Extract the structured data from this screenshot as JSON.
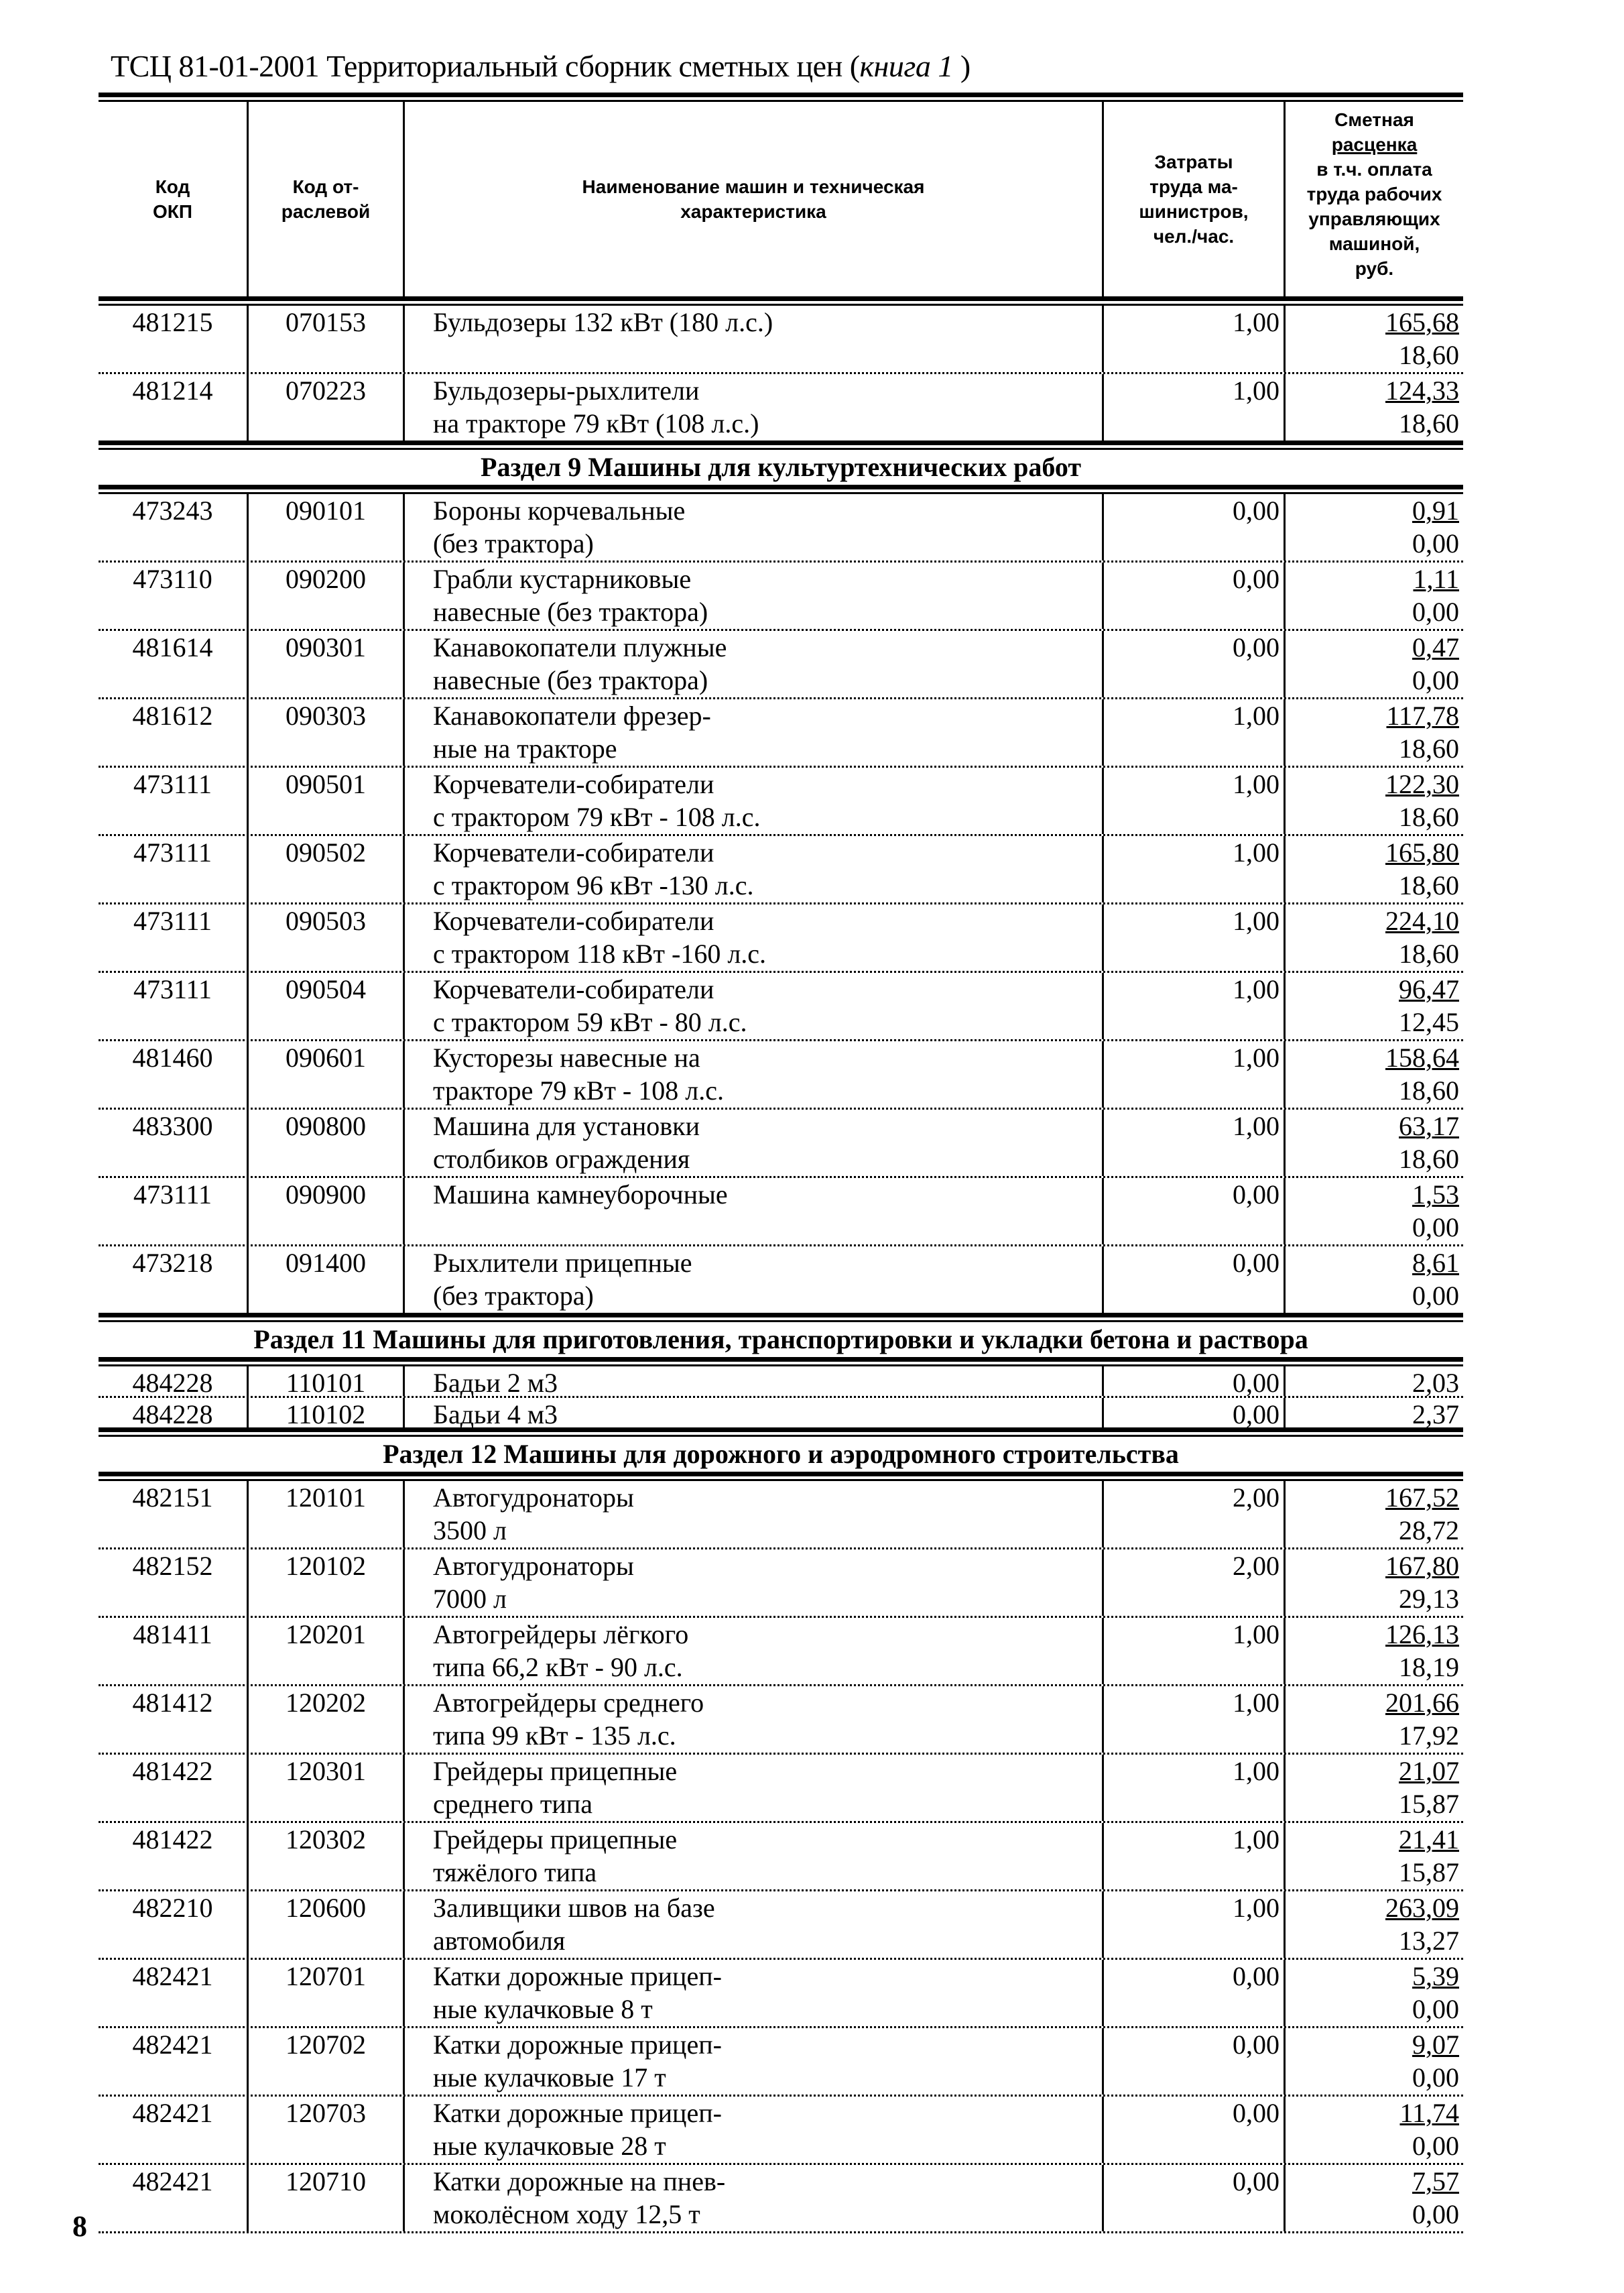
{
  "header": {
    "title_main": "ТСЦ 81-01-2001 Территориальный сборник сметных цен (",
    "title_italic": "книга 1",
    "title_end": " )"
  },
  "columns": [
    {
      "lines": [
        "Код",
        "ОКП"
      ]
    },
    {
      "lines": [
        "Код от-",
        "раслевой"
      ]
    },
    {
      "lines": [
        "Наименование машин и техническая",
        "характеристика"
      ]
    },
    {
      "lines": [
        "Затраты",
        "труда ма-",
        "шинистров,",
        "чел./час."
      ]
    },
    {
      "lines": [
        "Сметная",
        "расценка",
        "в т.ч. оплата",
        "труда рабочих",
        "управляющих",
        "машиной,",
        "руб."
      ],
      "underlined_line": 1
    }
  ],
  "blocks": [
    {
      "title": "",
      "rows": [
        {
          "okp": "481215",
          "code": "070153",
          "name": [
            "Бульдозеры 132 кВт (180 л.с.)",
            ""
          ],
          "labor": "1,00",
          "price": "165,68",
          "wage": "18,60"
        },
        {
          "okp": "481214",
          "code": "070223",
          "name": [
            "Бульдозеры-рыхлители",
            "на тракторе 79 кВт (108 л.с.)"
          ],
          "labor": "1,00",
          "price": "124,33",
          "wage": "18,60"
        }
      ]
    },
    {
      "title": "Раздел 9 Машины для культуртехнических работ",
      "rows": [
        {
          "okp": "473243",
          "code": "090101",
          "name": [
            "Бороны корчевальные",
            "(без трактора)"
          ],
          "labor": "0,00",
          "price": "0,91",
          "wage": "0,00"
        },
        {
          "okp": "473110",
          "code": "090200",
          "name": [
            "Грабли кустарниковые",
            "навесные (без трактора)"
          ],
          "labor": "0,00",
          "price": "1,11",
          "wage": "0,00"
        },
        {
          "okp": "481614",
          "code": "090301",
          "name": [
            "Канавокопатели плужные",
            "навесные (без трактора)"
          ],
          "labor": "0,00",
          "price": "0,47",
          "wage": "0,00"
        },
        {
          "okp": "481612",
          "code": "090303",
          "name": [
            "Канавокопатели фрезер-",
            "ные на тракторе"
          ],
          "labor": "1,00",
          "price": "117,78",
          "wage": "18,60"
        },
        {
          "okp": "473111",
          "code": "090501",
          "name": [
            "Корчеватели-собиратели",
            "с трактором 79 кВт - 108 л.с."
          ],
          "labor": "1,00",
          "price": "122,30",
          "wage": "18,60"
        },
        {
          "okp": "473111",
          "code": "090502",
          "name": [
            "Корчеватели-собиратели",
            "с трактором 96 кВт -130 л.с."
          ],
          "labor": "1,00",
          "price": "165,80",
          "wage": "18,60"
        },
        {
          "okp": "473111",
          "code": "090503",
          "name": [
            "Корчеватели-собиратели",
            "с трактором 118 кВт -160 л.с."
          ],
          "labor": "1,00",
          "price": "224,10",
          "wage": "18,60"
        },
        {
          "okp": "473111",
          "code": "090504",
          "name": [
            "Корчеватели-собиратели",
            "с трактором 59 кВт - 80 л.с."
          ],
          "labor": "1,00",
          "price": "96,47",
          "wage": "12,45"
        },
        {
          "okp": "481460",
          "code": "090601",
          "name": [
            "Кусторезы навесные на",
            "тракторе 79 кВт - 108 л.с."
          ],
          "labor": "1,00",
          "price": "158,64",
          "wage": "18,60"
        },
        {
          "okp": "483300",
          "code": "090800",
          "name": [
            "Машина для установки",
            "столбиков ограждения"
          ],
          "labor": "1,00",
          "price": "63,17",
          "wage": "18,60"
        },
        {
          "okp": "473111",
          "code": "090900",
          "name": [
            "Машина камнеуборочные",
            ""
          ],
          "labor": "0,00",
          "price": "1,53",
          "wage": "0,00"
        },
        {
          "okp": "473218",
          "code": "091400",
          "name": [
            "Рыхлители прицепные",
            "(без трактора)"
          ],
          "labor": "0,00",
          "price": "8,61",
          "wage": "0,00"
        }
      ]
    },
    {
      "title": "Раздел 11   Машины для приготовления, транспортировки и укладки бетона и раствора",
      "compact": true,
      "rows": [
        {
          "okp": "484228",
          "code": "110101",
          "name": [
            "Бадьи 2 м3"
          ],
          "labor": "0,00",
          "price": "2,03"
        },
        {
          "okp": "484228",
          "code": "110102",
          "name": [
            "Бадьи 4 м3"
          ],
          "labor": "0,00",
          "price": "2,37"
        }
      ]
    },
    {
      "title": "Раздел 12 Машины для дорожного  и аэродромного строительства",
      "open_end": true,
      "rows": [
        {
          "okp": "482151",
          "code": "120101",
          "name": [
            "Автогудронаторы",
            "3500 л"
          ],
          "labor": "2,00",
          "price": "167,52",
          "wage": "28,72"
        },
        {
          "okp": "482152",
          "code": "120102",
          "name": [
            "Автогудронаторы",
            "7000 л"
          ],
          "labor": "2,00",
          "price": "167,80",
          "wage": "29,13"
        },
        {
          "okp": "481411",
          "code": "120201",
          "name": [
            "Автогрейдеры лёгкого",
            "типа 66,2 кВт - 90 л.с."
          ],
          "labor": "1,00",
          "price": "126,13",
          "wage": "18,19"
        },
        {
          "okp": "481412",
          "code": "120202",
          "name": [
            "Автогрейдеры среднего",
            "типа 99 кВт - 135 л.с."
          ],
          "labor": "1,00",
          "price": "201,66",
          "wage": "17,92"
        },
        {
          "okp": "481422",
          "code": "120301",
          "name": [
            "Грейдеры прицепные",
            "среднего типа"
          ],
          "labor": "1,00",
          "price": "21,07",
          "wage": "15,87"
        },
        {
          "okp": "481422",
          "code": "120302",
          "name": [
            "Грейдеры прицепные",
            "тяжёлого типа"
          ],
          "labor": "1,00",
          "price": "21,41",
          "wage": "15,87"
        },
        {
          "okp": "482210",
          "code": "120600",
          "name": [
            "Заливщики швов на базе",
            "автомобиля"
          ],
          "labor": "1,00",
          "price": "263,09",
          "wage": "13,27"
        },
        {
          "okp": "482421",
          "code": "120701",
          "name": [
            "Катки дорожные прицеп-",
            "ные кулачковые 8 т"
          ],
          "labor": "0,00",
          "price": "5,39",
          "wage": "0,00"
        },
        {
          "okp": "482421",
          "code": "120702",
          "name": [
            "Катки дорожные прицеп-",
            "ные кулачковые 17 т"
          ],
          "labor": "0,00",
          "price": "9,07",
          "wage": "0,00"
        },
        {
          "okp": "482421",
          "code": "120703",
          "name": [
            "Катки дорожные прицеп-",
            "ные кулачковые 28 т"
          ],
          "labor": "0,00",
          "price": "11,74",
          "wage": "0,00"
        },
        {
          "okp": "482421",
          "code": "120710",
          "name": [
            "Катки дорожные на пнев-",
            "моколёсном ходу  12,5 т"
          ],
          "labor": "0,00",
          "price": "7,57",
          "wage": "0,00"
        }
      ]
    }
  ],
  "page_number": "8"
}
